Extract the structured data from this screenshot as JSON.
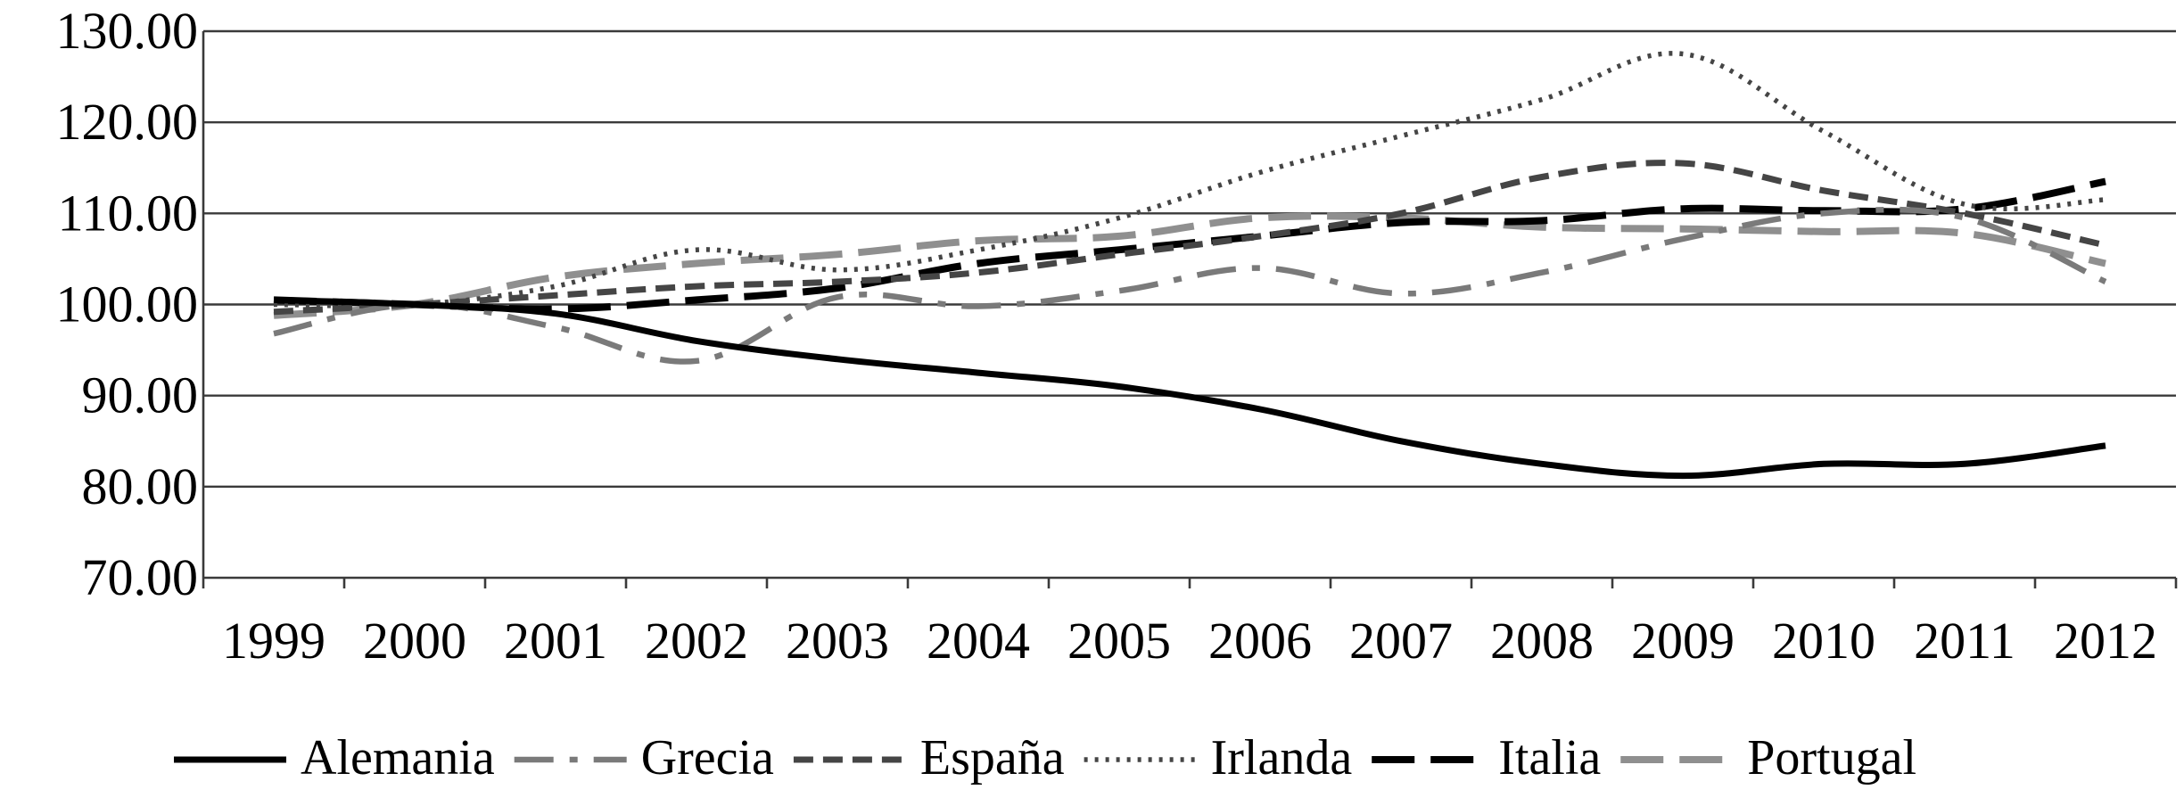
{
  "chart_data": {
    "type": "line",
    "title": "",
    "xlabel": "",
    "ylabel": "",
    "categories": [
      "1999",
      "2000",
      "2001",
      "2002",
      "2003",
      "2004",
      "2005",
      "2006",
      "2007",
      "2008",
      "2009",
      "2010",
      "2011",
      "2012"
    ],
    "ylim": [
      70,
      130
    ],
    "yticks": [
      "70.00",
      "80.00",
      "90.00",
      "100.00",
      "110.00",
      "120.00",
      "130.00"
    ],
    "grid": true,
    "legend_position": "bottom",
    "series": [
      {
        "name": "Alemania",
        "color": "#000000",
        "style": "solid",
        "values": [
          100.5,
          100.0,
          99.0,
          96.0,
          94.0,
          92.5,
          91.0,
          88.5,
          85.0,
          82.5,
          81.2,
          82.5,
          82.5,
          84.5
        ]
      },
      {
        "name": "Grecia",
        "color": "#7a7a7a",
        "style": "dashdot",
        "values": [
          96.8,
          100.0,
          97.5,
          93.8,
          100.8,
          99.8,
          101.5,
          104.0,
          101.2,
          103.5,
          107.2,
          110.0,
          109.5,
          102.5
        ]
      },
      {
        "name": "España",
        "color": "#454545",
        "style": "dash",
        "values": [
          99.2,
          100.0,
          101.0,
          102.0,
          102.5,
          103.5,
          105.5,
          107.5,
          110.0,
          114.0,
          115.5,
          112.5,
          110.0,
          106.5
        ]
      },
      {
        "name": "Irlanda",
        "color": "#454545",
        "style": "dotted",
        "values": [
          100.0,
          100.0,
          102.0,
          106.0,
          103.8,
          106.0,
          109.5,
          114.5,
          118.5,
          122.5,
          127.5,
          119.0,
          111.0,
          111.5
        ]
      },
      {
        "name": "Italia",
        "color": "#000000",
        "style": "longdash",
        "values": [
          100.5,
          100.0,
          99.5,
          100.5,
          101.8,
          104.5,
          106.0,
          107.5,
          109.0,
          109.2,
          110.5,
          110.3,
          110.5,
          113.5
        ]
      },
      {
        "name": "Portugal",
        "color": "#8f8f8f",
        "style": "longdash",
        "values": [
          98.8,
          100.0,
          103.0,
          104.5,
          105.5,
          107.0,
          107.5,
          109.5,
          109.5,
          108.5,
          108.3,
          108.0,
          107.8,
          104.5
        ]
      }
    ]
  }
}
